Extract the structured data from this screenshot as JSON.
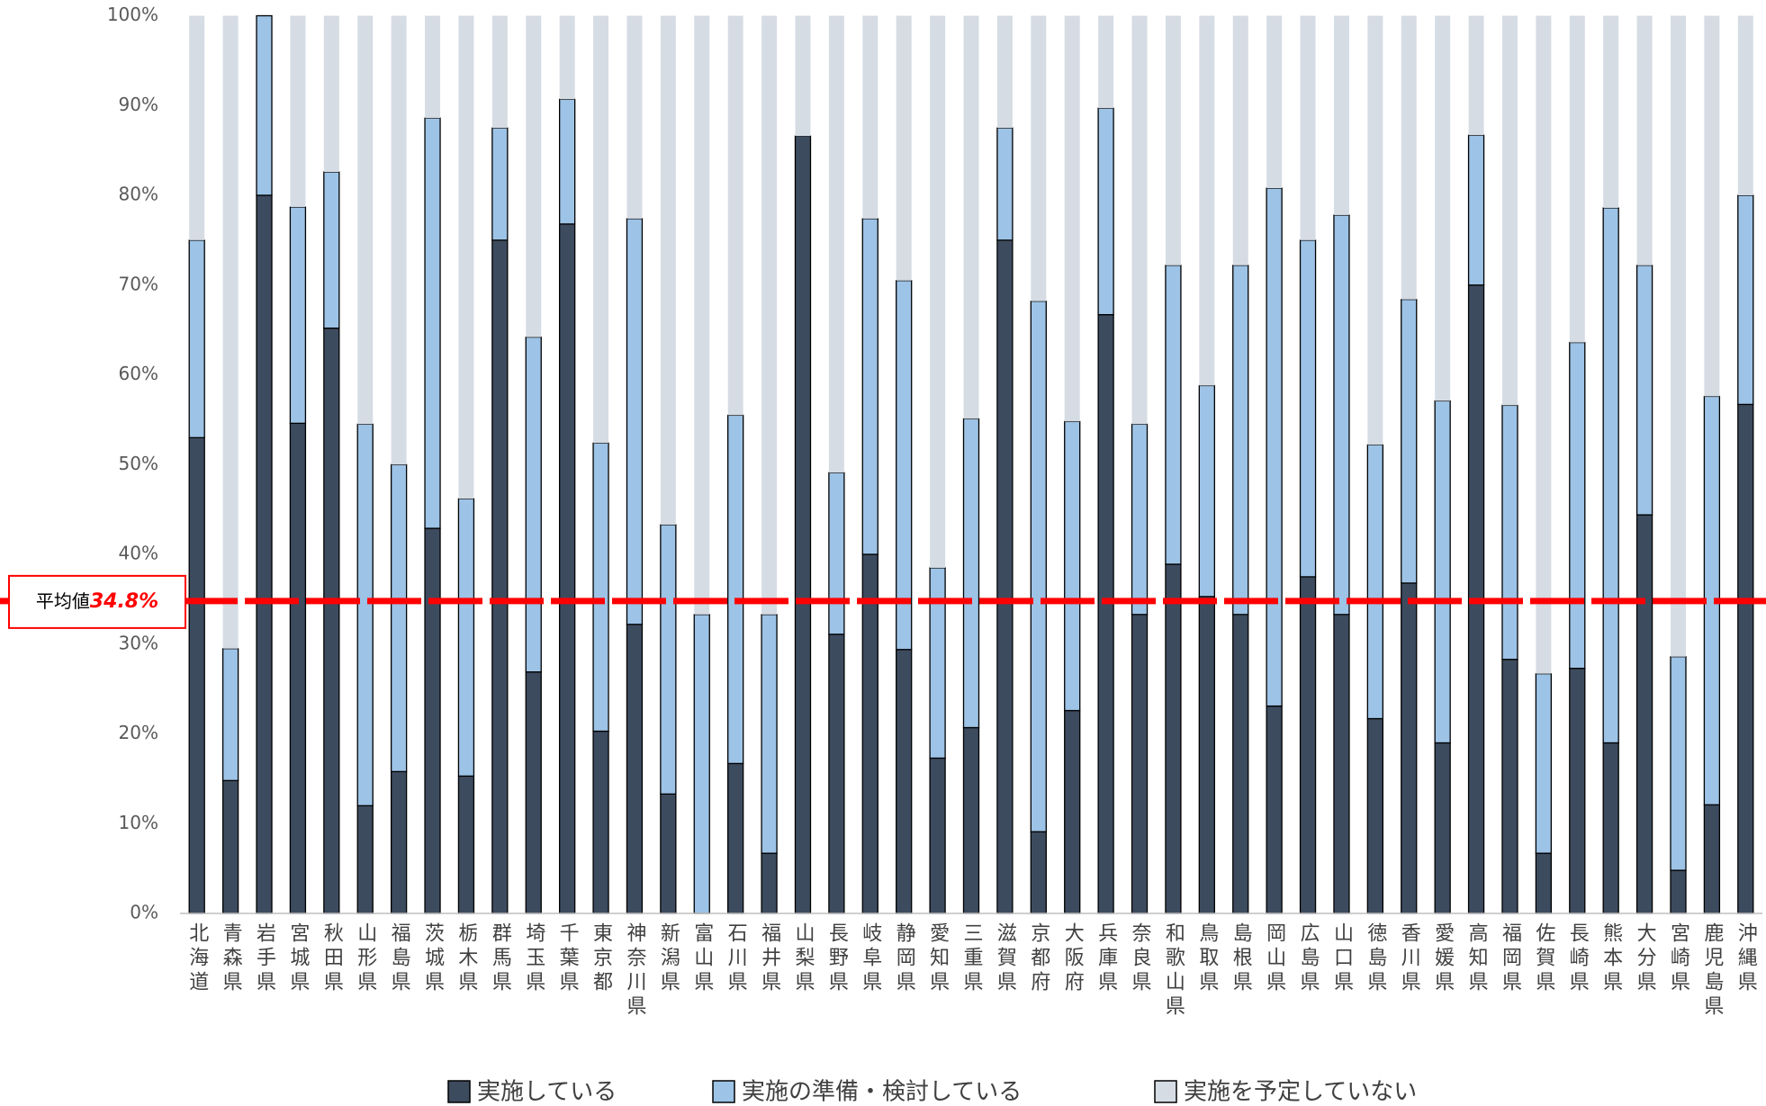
{
  "chart_data": {
    "type": "stacked_bar",
    "categories": [
      "北海道",
      "青森県",
      "岩手県",
      "宮城県",
      "秋田県",
      "山形県",
      "福島県",
      "茨城県",
      "栃木県",
      "群馬県",
      "埼玉県",
      "千葉県",
      "東京都",
      "神奈川県",
      "新潟県",
      "富山県",
      "石川県",
      "福井県",
      "山梨県",
      "長野県",
      "岐阜県",
      "静岡県",
      "愛知県",
      "三重県",
      "滋賀県",
      "京都府",
      "大阪府",
      "兵庫県",
      "奈良県",
      "和歌山県",
      "鳥取県",
      "島根県",
      "岡山県",
      "広島県",
      "山口県",
      "徳島県",
      "香川県",
      "愛媛県",
      "高知県",
      "福岡県",
      "佐賀県",
      "長崎県",
      "熊本県",
      "大分県",
      "宮崎県",
      "鹿児島県",
      "沖縄県"
    ],
    "series": [
      {
        "name": "実施している",
        "color": "#3d4b5f",
        "values": [
          53,
          14.8,
          80,
          54.6,
          65.2,
          12,
          15.8,
          42.9,
          15.3,
          75,
          26.9,
          76.8,
          20.3,
          32.2,
          13.3,
          0,
          16.7,
          6.7,
          86.6,
          31.1,
          40,
          29.4,
          17.3,
          20.7,
          75,
          9.1,
          22.6,
          66.7,
          33.3,
          38.9,
          35.3,
          33.3,
          23.1,
          37.5,
          33.3,
          21.7,
          36.8,
          19,
          70,
          28.3,
          6.7,
          27.3,
          19,
          44.4,
          4.8,
          12.1,
          56.7
        ]
      },
      {
        "name": "実施の準備・検討している",
        "color": "#9dc3e6",
        "values": [
          22,
          14.7,
          20,
          24.1,
          17.4,
          42.5,
          34.2,
          45.7,
          30.9,
          12.5,
          37.3,
          13.9,
          32.1,
          45.2,
          30,
          33.3,
          38.8,
          26.6,
          0,
          18,
          37.4,
          41.1,
          21.2,
          34.4,
          12.5,
          59.1,
          32.2,
          23,
          21.2,
          33.3,
          23.5,
          38.9,
          57.7,
          37.5,
          44.5,
          30.5,
          31.6,
          38.1,
          16.7,
          28.3,
          20,
          36.3,
          59.6,
          27.8,
          23.8,
          45.5,
          23.3
        ]
      },
      {
        "name": "実施を予定していない",
        "color": "#d6dce4",
        "values": [
          25,
          70.5,
          0,
          21.3,
          17.4,
          45.5,
          50,
          11.4,
          53.8,
          12.5,
          35.8,
          9.3,
          47.6,
          22.6,
          56.7,
          66.7,
          44.5,
          66.7,
          13.4,
          50.9,
          22.6,
          29.5,
          61.5,
          44.9,
          12.5,
          31.8,
          45.2,
          10.3,
          45.5,
          27.8,
          41.2,
          27.8,
          19.2,
          25,
          22.2,
          47.8,
          31.6,
          42.9,
          13.3,
          43.4,
          73.3,
          36.4,
          21.4,
          27.8,
          71.4,
          42.4,
          20
        ]
      }
    ],
    "ylim": [
      0,
      100
    ],
    "yticks": [
      {
        "value": 0,
        "label": "0%"
      },
      {
        "value": 10,
        "label": "10%"
      },
      {
        "value": 20,
        "label": "20%"
      },
      {
        "value": 30,
        "label": "30%"
      },
      {
        "value": 40,
        "label": "40%"
      },
      {
        "value": 50,
        "label": "50%"
      },
      {
        "value": 60,
        "label": "60%"
      },
      {
        "value": 70,
        "label": "70%"
      },
      {
        "value": 80,
        "label": "80%"
      },
      {
        "value": 90,
        "label": "90%"
      },
      {
        "value": 100,
        "label": "100%"
      }
    ],
    "grid": false,
    "average": {
      "label": "平均値",
      "value": 34.8,
      "value_label": "34.8%",
      "color": "#ff0000"
    },
    "legend": "bottom"
  }
}
